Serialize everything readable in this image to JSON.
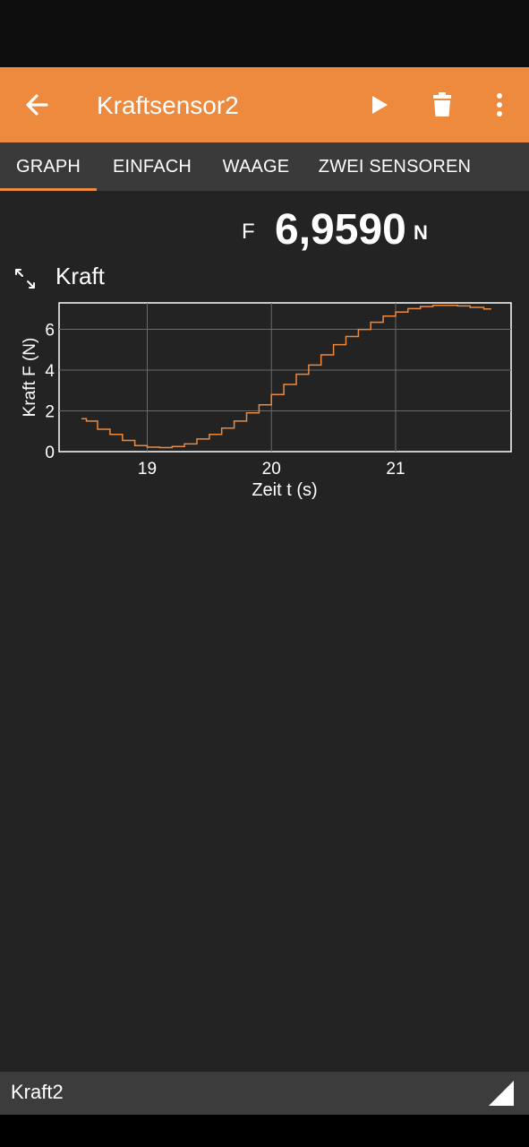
{
  "app_bar": {
    "title": "Kraftsensor2",
    "back_icon": "arrow-left-icon",
    "play_icon": "play-icon",
    "delete_icon": "trash-icon",
    "more_icon": "more-vertical-icon",
    "background": "#ee8a3e"
  },
  "tabs": [
    {
      "label": "GRAPH",
      "active": true
    },
    {
      "label": "EINFACH",
      "active": false
    },
    {
      "label": "WAAGE",
      "active": false
    },
    {
      "label": "ZWEI SENSOREN",
      "active": false
    }
  ],
  "reading": {
    "symbol": "F",
    "value": "6,9590",
    "unit": "N"
  },
  "graph": {
    "title": "Kraft",
    "expand_icon": "expand-arrows-icon"
  },
  "chart_data": {
    "type": "line",
    "xlabel": "Zeit t (s)",
    "ylabel": "Kraft F (N)",
    "xlim": [
      18.29,
      21.93
    ],
    "ylim": [
      0,
      7.3
    ],
    "xticks": [
      19,
      20,
      21
    ],
    "yticks": [
      0,
      2,
      4,
      6
    ],
    "xtick_labels": [
      "19",
      "20",
      "21"
    ],
    "ytick_labels": [
      "0",
      "2",
      "4",
      "6"
    ],
    "grid": true,
    "line_color": "#ee8a3e",
    "series": [
      {
        "x": [
          18.47,
          18.55,
          18.65,
          18.75,
          18.85,
          18.95,
          19.05,
          19.15,
          19.25,
          19.35,
          19.45,
          19.55,
          19.65,
          19.75,
          19.85,
          19.95,
          20.05,
          20.15,
          20.25,
          20.35,
          20.45,
          20.55,
          20.65,
          20.75,
          20.85,
          20.95,
          21.05,
          21.15,
          21.25,
          21.35,
          21.45,
          21.55,
          21.65,
          21.77
        ],
        "y": [
          1.62,
          1.5,
          1.1,
          0.85,
          0.55,
          0.3,
          0.22,
          0.2,
          0.25,
          0.38,
          0.62,
          0.85,
          1.15,
          1.5,
          1.9,
          2.3,
          2.8,
          3.3,
          3.8,
          4.25,
          4.75,
          5.25,
          5.65,
          6.0,
          6.35,
          6.65,
          6.85,
          7.02,
          7.12,
          7.18,
          7.18,
          7.15,
          7.08,
          7.0
        ]
      }
    ]
  },
  "bottom_bar": {
    "label": "Kraft2",
    "corner_icon": "resize-corner-icon"
  }
}
